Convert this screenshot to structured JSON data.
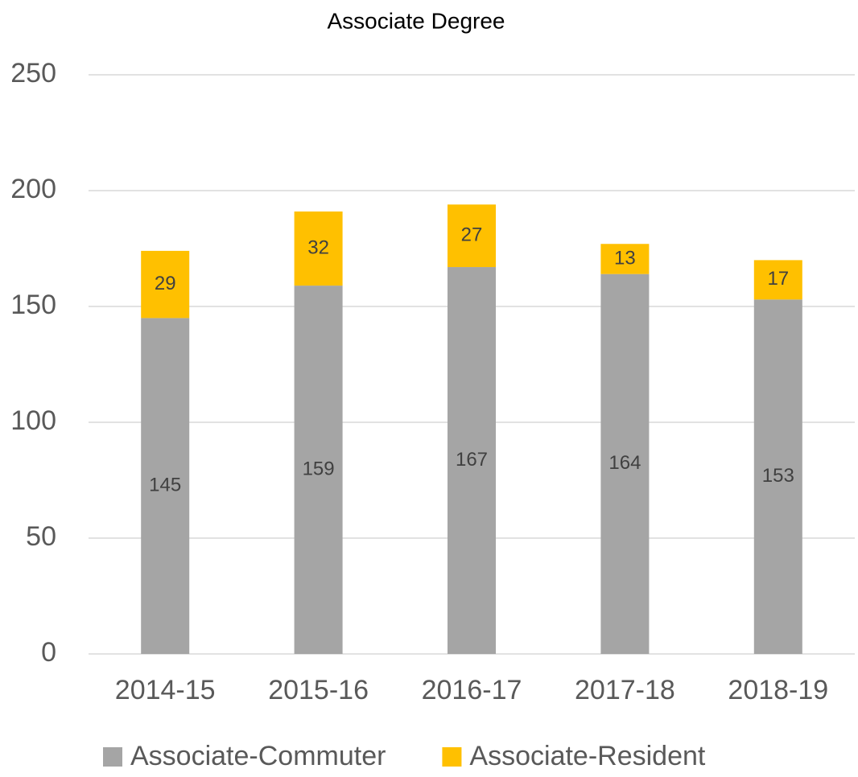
{
  "chart_data": {
    "type": "stacked_bar",
    "title": "Associate Degree",
    "categories": [
      "2014-15",
      "2015-16",
      "2016-17",
      "2017-18",
      "2018-19"
    ],
    "series": [
      {
        "name": "Associate-Commuter",
        "color": "#a5a5a5",
        "values": [
          145,
          159,
          167,
          164,
          153
        ]
      },
      {
        "name": "Associate-Resident",
        "color": "#ffc000",
        "values": [
          29,
          32,
          27,
          13,
          17
        ]
      }
    ],
    "ylim": [
      0,
      250
    ],
    "yticks": [
      0,
      50,
      100,
      150,
      200,
      250
    ],
    "grid": true,
    "legend": "bottom"
  }
}
